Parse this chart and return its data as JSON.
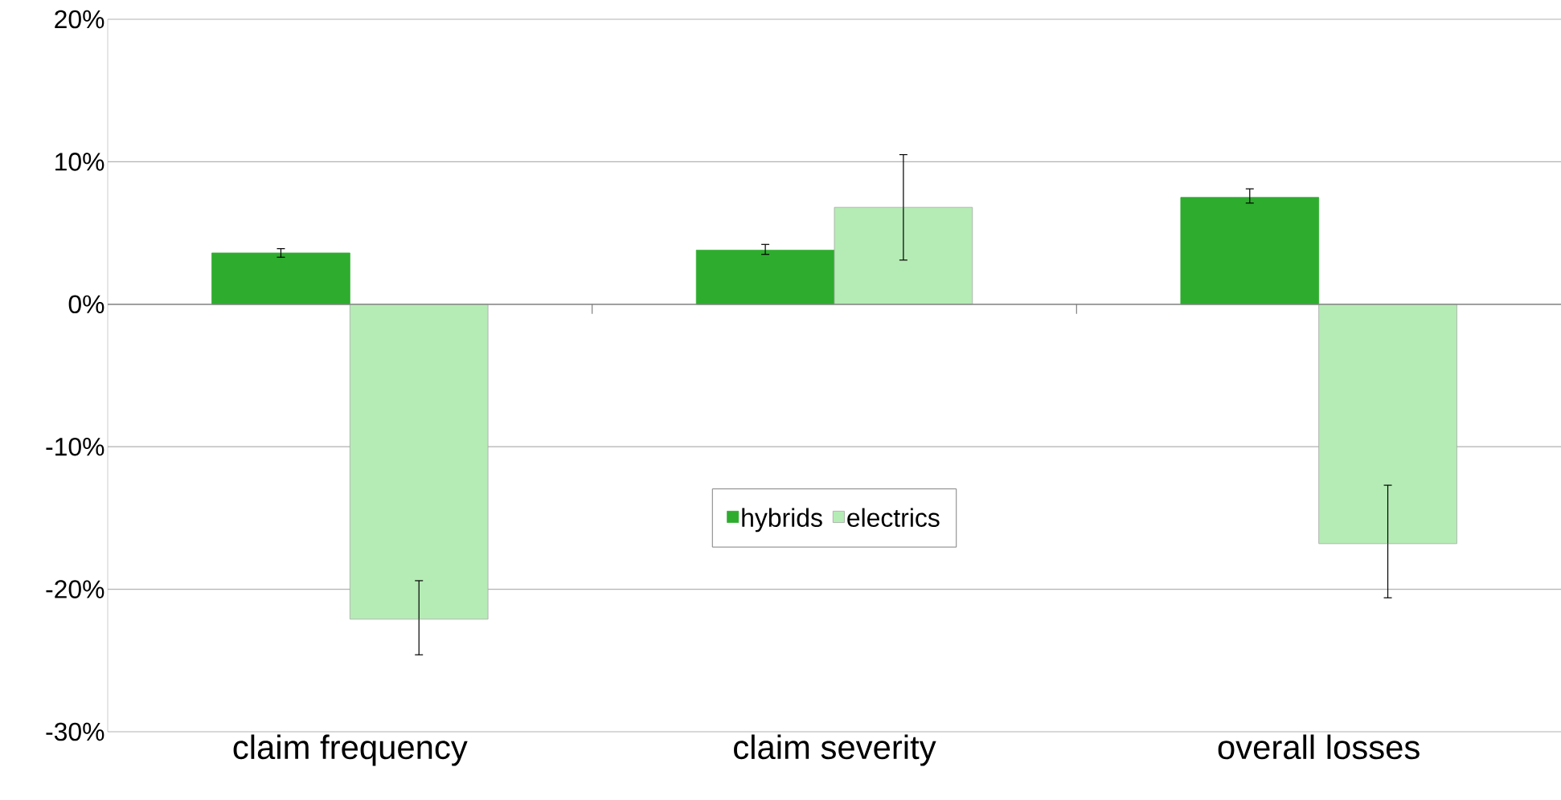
{
  "chart_data": {
    "type": "bar",
    "categories": [
      "claim frequency",
      "claim severity",
      "overall losses"
    ],
    "series": [
      {
        "name": "hybrids",
        "color": "#2eac2e",
        "values": [
          3.6,
          3.8,
          7.5
        ],
        "errors": [
          [
            3.3,
            3.9
          ],
          [
            3.5,
            4.2
          ],
          [
            7.1,
            8.1
          ]
        ]
      },
      {
        "name": "electrics",
        "color": "#b5ecb5",
        "values": [
          -22.1,
          6.8,
          -16.8
        ],
        "errors": [
          [
            -24.6,
            -19.4
          ],
          [
            3.1,
            10.5
          ],
          [
            -20.6,
            -12.7
          ]
        ]
      }
    ],
    "ylim": [
      -30,
      20
    ],
    "yticks": [
      {
        "value": -30,
        "label": "-30%"
      },
      {
        "value": -20,
        "label": "-20%"
      },
      {
        "value": -10,
        "label": "-10%"
      },
      {
        "value": 0,
        "label": "0%"
      },
      {
        "value": 10,
        "label": "10%"
      },
      {
        "value": 20,
        "label": "20%"
      }
    ],
    "grid": "y",
    "legend": "center"
  }
}
